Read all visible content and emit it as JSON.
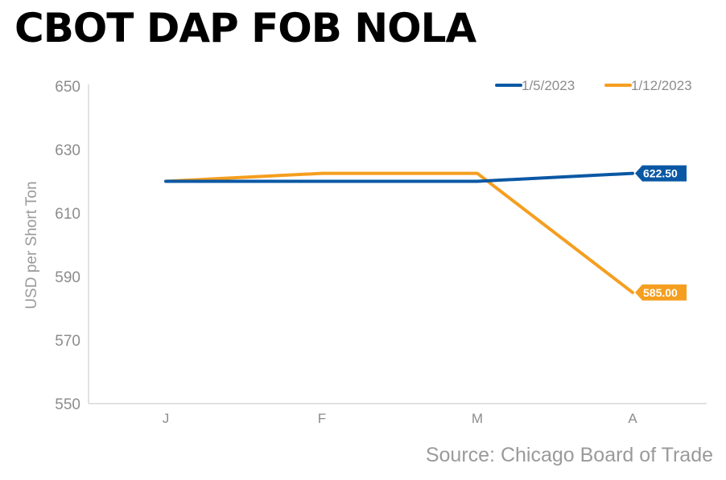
{
  "title": "CBOT DAP FOB NOLA",
  "source": "Source: Chicago Board of Trade",
  "chart_data": {
    "type": "line",
    "title": "CBOT DAP FOB NOLA",
    "xlabel": "",
    "ylabel": "USD per Short Ton",
    "categories": [
      "J",
      "F",
      "M",
      "A"
    ],
    "ylim": [
      550,
      650
    ],
    "yticks": [
      650,
      630,
      610,
      590,
      570,
      550
    ],
    "grid": false,
    "legend_position": "top-right",
    "series": [
      {
        "name": "1/5/2023",
        "color": "#0a58a4",
        "values": [
          620,
          620,
          620,
          622.5
        ],
        "end_label": "622.50"
      },
      {
        "name": "1/12/2023",
        "color": "#f59e1f",
        "values": [
          620,
          622.5,
          622.5,
          585
        ],
        "end_label": "585.00"
      }
    ]
  }
}
